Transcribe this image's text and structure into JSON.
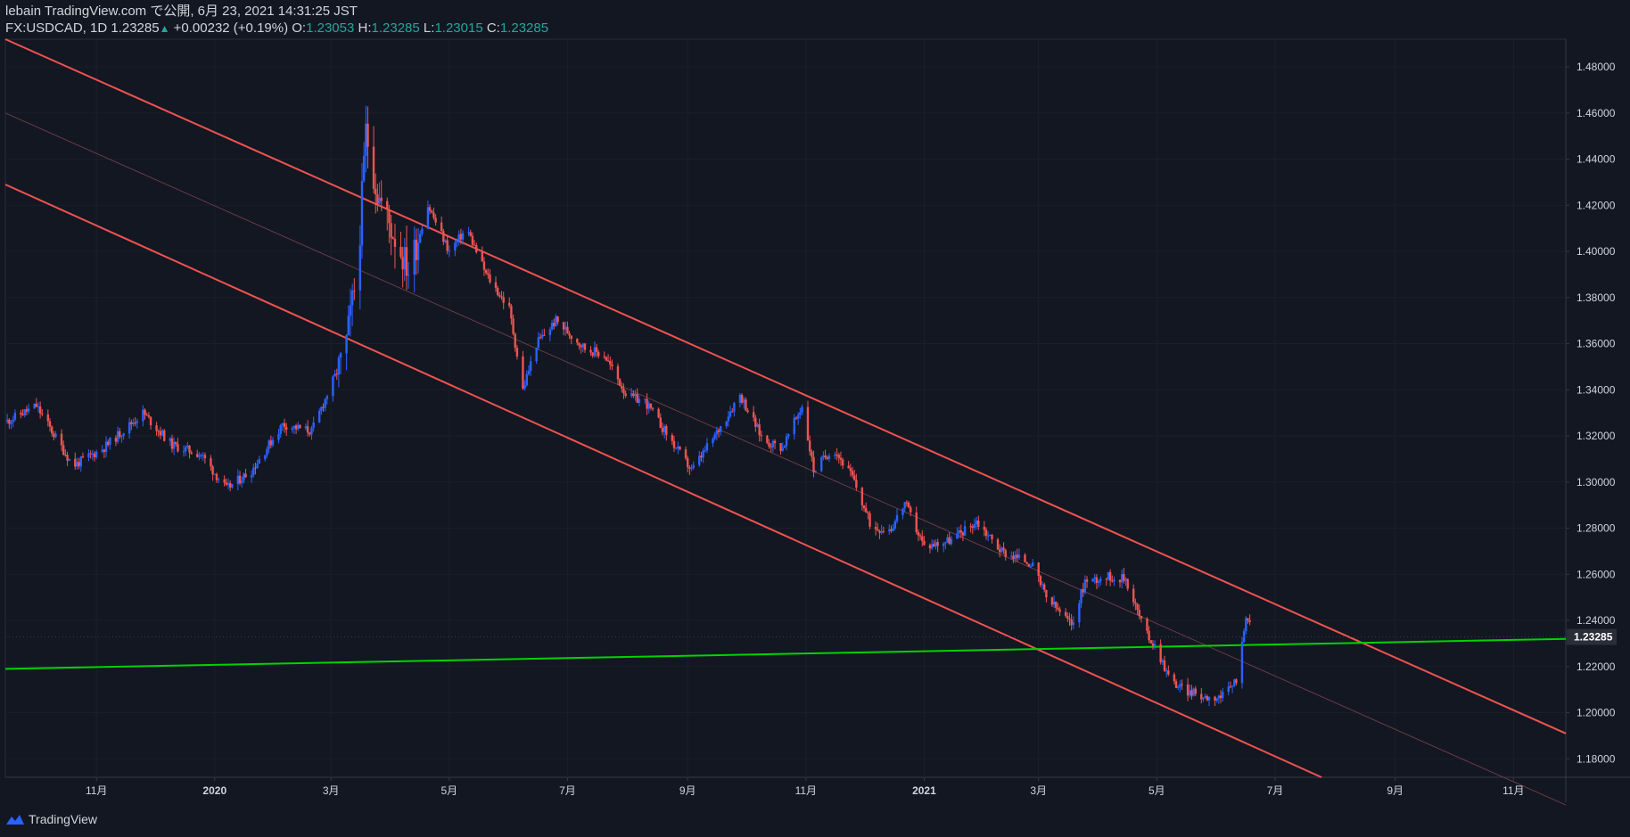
{
  "header": {
    "line1": "lebain TradingView.com で公開, 6月 23, 2021 14:31:25 JST",
    "symbol": "FX:USDCAD, 1D",
    "last": "1.23285",
    "change": "+0.00232 (+0.19%)",
    "o_label": "O:",
    "o_val": "1.23053",
    "h_label": "H:",
    "h_val": "1.23285",
    "l_label": "L:",
    "l_val": "1.23015",
    "c_label": "C:",
    "c_val": "1.23285"
  },
  "footer": {
    "brand": "TradingView"
  },
  "colors": {
    "background": "#131722",
    "up_candle": "#2962ff",
    "down_candle": "#ef5350",
    "channel": "#f05350",
    "support": "#00d400",
    "text": "#d1d4dc"
  },
  "chart_data": {
    "type": "candlestick",
    "symbol": "FX:USDCAD",
    "interval": "1D",
    "y_axis": {
      "range": [
        1.172,
        1.492
      ],
      "ticks": [
        "1.18000",
        "1.20000",
        "1.22000",
        "1.24000",
        "1.26000",
        "1.28000",
        "1.30000",
        "1.32000",
        "1.34000",
        "1.36000",
        "1.38000",
        "1.40000",
        "1.42000",
        "1.44000",
        "1.46000",
        "1.48000"
      ],
      "last_price_label": "1.23285"
    },
    "x_axis": {
      "range": [
        "2019-09-15",
        "2021-11-28"
      ],
      "ticks": [
        {
          "label": "11月",
          "date": "2019-11-01",
          "bold": false
        },
        {
          "label": "2020",
          "date": "2020-01-01",
          "bold": true
        },
        {
          "label": "3月",
          "date": "2020-03-01",
          "bold": false
        },
        {
          "label": "5月",
          "date": "2020-05-01",
          "bold": false
        },
        {
          "label": "7月",
          "date": "2020-07-01",
          "bold": false
        },
        {
          "label": "9月",
          "date": "2020-09-01",
          "bold": false
        },
        {
          "label": "11月",
          "date": "2020-11-01",
          "bold": false
        },
        {
          "label": "2021",
          "date": "2021-01-01",
          "bold": true
        },
        {
          "label": "3月",
          "date": "2021-03-01",
          "bold": false
        },
        {
          "label": "5月",
          "date": "2021-05-01",
          "bold": false
        },
        {
          "label": "7月",
          "date": "2021-07-01",
          "bold": false
        },
        {
          "label": "9月",
          "date": "2021-09-01",
          "bold": false
        },
        {
          "label": "11月",
          "date": "2021-11-01",
          "bold": false
        }
      ]
    },
    "price_path": [
      [
        "2019-09-15",
        1.326
      ],
      [
        "2019-10-01",
        1.333
      ],
      [
        "2019-10-20",
        1.307
      ],
      [
        "2019-11-05",
        1.315
      ],
      [
        "2019-11-25",
        1.33
      ],
      [
        "2019-12-10",
        1.316
      ],
      [
        "2019-12-25",
        1.312
      ],
      [
        "2020-01-07",
        1.297
      ],
      [
        "2020-01-20",
        1.305
      ],
      [
        "2020-02-05",
        1.325
      ],
      [
        "2020-02-20",
        1.322
      ],
      [
        "2020-03-01",
        1.342
      ],
      [
        "2020-03-08",
        1.355
      ],
      [
        "2020-03-15",
        1.395
      ],
      [
        "2020-03-19",
        1.452
      ],
      [
        "2020-03-25",
        1.425
      ],
      [
        "2020-04-01",
        1.41
      ],
      [
        "2020-04-10",
        1.392
      ],
      [
        "2020-04-20",
        1.42
      ],
      [
        "2020-05-01",
        1.4
      ],
      [
        "2020-05-10",
        1.41
      ],
      [
        "2020-05-20",
        1.39
      ],
      [
        "2020-06-01",
        1.375
      ],
      [
        "2020-06-08",
        1.34
      ],
      [
        "2020-06-15",
        1.36
      ],
      [
        "2020-06-25",
        1.37
      ],
      [
        "2020-07-10",
        1.358
      ],
      [
        "2020-07-20",
        1.355
      ],
      [
        "2020-08-01",
        1.337
      ],
      [
        "2020-08-10",
        1.335
      ],
      [
        "2020-08-25",
        1.316
      ],
      [
        "2020-09-03",
        1.305
      ],
      [
        "2020-09-15",
        1.32
      ],
      [
        "2020-09-28",
        1.338
      ],
      [
        "2020-10-10",
        1.318
      ],
      [
        "2020-10-20",
        1.315
      ],
      [
        "2020-10-30",
        1.333
      ],
      [
        "2020-11-05",
        1.305
      ],
      [
        "2020-11-15",
        1.315
      ],
      [
        "2020-11-25",
        1.302
      ],
      [
        "2020-12-05",
        1.28
      ],
      [
        "2020-12-15",
        1.28
      ],
      [
        "2020-12-22",
        1.291
      ],
      [
        "2021-01-01",
        1.272
      ],
      [
        "2021-01-15",
        1.275
      ],
      [
        "2021-01-28",
        1.283
      ],
      [
        "2021-02-10",
        1.27
      ],
      [
        "2021-02-25",
        1.265
      ],
      [
        "2021-03-05",
        1.25
      ],
      [
        "2021-03-18",
        1.238
      ],
      [
        "2021-03-25",
        1.257
      ],
      [
        "2021-04-05",
        1.259
      ],
      [
        "2021-04-15",
        1.258
      ],
      [
        "2021-04-25",
        1.235
      ],
      [
        "2021-05-01",
        1.228
      ],
      [
        "2021-05-08",
        1.214
      ],
      [
        "2021-05-15",
        1.21
      ],
      [
        "2021-05-25",
        1.207
      ],
      [
        "2021-06-05",
        1.207
      ],
      [
        "2021-06-12",
        1.216
      ],
      [
        "2021-06-16",
        1.243
      ],
      [
        "2021-06-20",
        1.233
      ]
    ],
    "annotations": [
      {
        "type": "line",
        "name": "channel-upper",
        "color": "#f05350",
        "points": [
          [
            "2019-09-15",
            1.492
          ],
          [
            "2021-11-28",
            1.191
          ]
        ]
      },
      {
        "type": "line",
        "name": "channel-lower",
        "color": "#f05350",
        "points": [
          [
            "2019-09-15",
            1.429
          ],
          [
            "2021-07-25",
            1.172
          ]
        ]
      },
      {
        "type": "line",
        "name": "channel-mid",
        "color": "#6b3b44",
        "points": [
          [
            "2019-09-15",
            1.46
          ],
          [
            "2021-11-28",
            1.16
          ]
        ]
      },
      {
        "type": "line",
        "name": "support-line",
        "color": "#00d400",
        "points": [
          [
            "2019-09-15",
            1.219
          ],
          [
            "2021-11-28",
            1.232
          ]
        ]
      }
    ]
  }
}
